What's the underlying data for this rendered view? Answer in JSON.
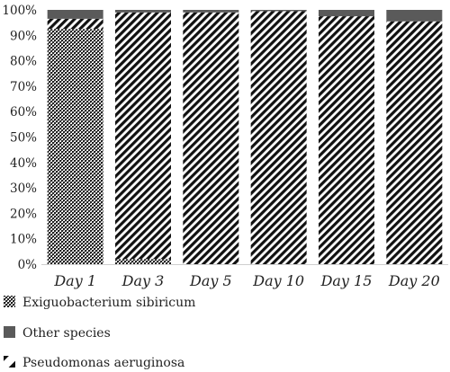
{
  "chart_data": {
    "type": "bar",
    "stacked": true,
    "percent": true,
    "categories": [
      "Day 1",
      "Day 3",
      "Day 5",
      "Day 10",
      "Day 15",
      "Day 20"
    ],
    "y_ticks": [
      "0%",
      "10%",
      "20%",
      "30%",
      "40%",
      "50%",
      "60%",
      "70%",
      "80%",
      "90%",
      "100%"
    ],
    "ylim": [
      0,
      100
    ],
    "series": [
      {
        "name": "Exiguobacterium sibiricum",
        "pattern": "crosshatch",
        "color": "#333333",
        "values": [
          92.5,
          2,
          0,
          0,
          0,
          0
        ]
      },
      {
        "name": "Pseudomonas aeruginosa",
        "pattern": "diagonal",
        "color": "#111111",
        "values": [
          4,
          97,
          99,
          99.5,
          97.5,
          95.5
        ]
      },
      {
        "name": "Other species",
        "pattern": "solid",
        "color": "#5a5a5a",
        "values": [
          3.5,
          1,
          1,
          0.5,
          2.5,
          4.5
        ]
      }
    ],
    "legend": {
      "placement": "bottom-left",
      "items": [
        {
          "label": "Exiguobacterium sibiricum",
          "series": 0
        },
        {
          "label": "Other species",
          "series": 2
        },
        {
          "label": "Pseudomonas aeruginosa",
          "series": 1
        }
      ]
    },
    "grid": false,
    "title": "",
    "xlabel": "",
    "ylabel": ""
  }
}
